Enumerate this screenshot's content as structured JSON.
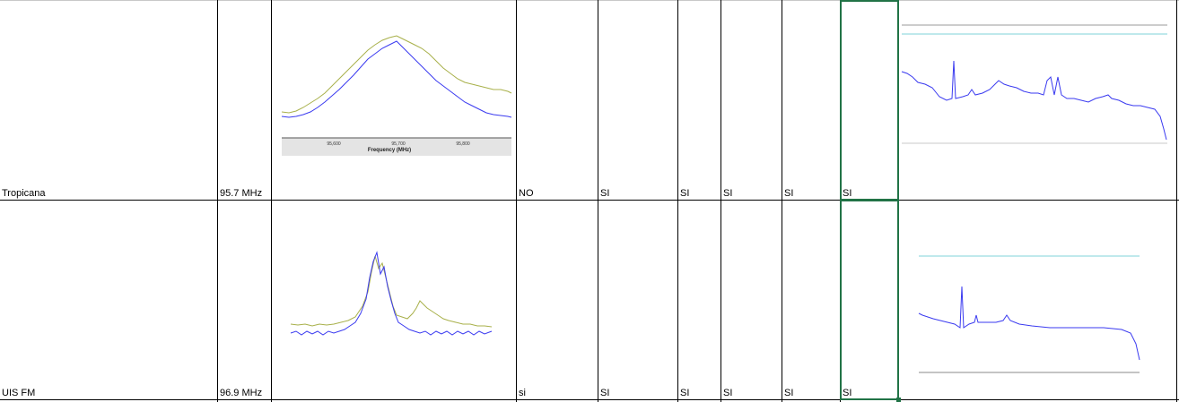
{
  "rows": [
    {
      "station": "Tropicana",
      "frequency": "95.7 MHz",
      "col_d": "NO",
      "col_e": "SI",
      "col_f": "SI",
      "col_g": "SI",
      "col_h": "SI",
      "col_i": "SI",
      "spectrum_axis_ticks": [
        "95,600",
        "95,700",
        "95,800"
      ],
      "spectrum_axis_label": "Frequency (MHz)"
    },
    {
      "station": "UIS FM",
      "frequency": "96.9 MHz",
      "col_d": "si",
      "col_e": "SI",
      "col_f": "SI",
      "col_g": "SI",
      "col_h": "SI",
      "col_i": "SI"
    }
  ],
  "colors": {
    "selection": "#217346",
    "trace_blue": "#3a3af0",
    "trace_olive": "#a8b04a",
    "ref_cyan": "#7fd3d8"
  }
}
